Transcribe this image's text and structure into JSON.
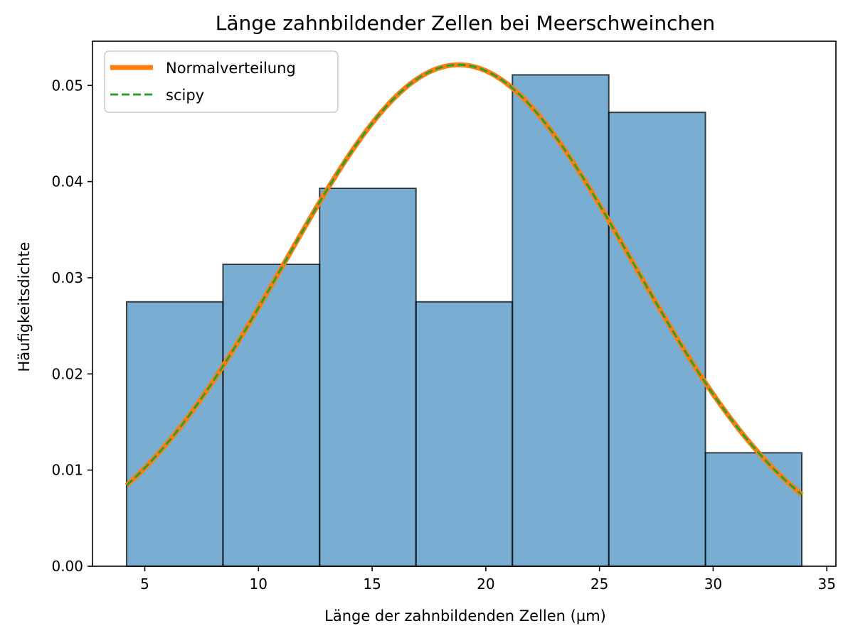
{
  "chart_data": {
    "type": "histogram",
    "title": "Länge zahnbildender Zellen bei Meerschweinchen",
    "xlabel": "Länge der zahnbildenden Zellen (µm)",
    "ylabel": "Häufigkeitsdichte",
    "xlim": [
      2.7,
      35.4
    ],
    "ylim": [
      0,
      0.0546
    ],
    "xticks": [
      5,
      10,
      15,
      20,
      25,
      30,
      35
    ],
    "yticks": [
      0.0,
      0.01,
      0.02,
      0.03,
      0.04,
      0.05
    ],
    "ytick_labels": [
      "0.00",
      "0.01",
      "0.02",
      "0.03",
      "0.04",
      "0.05"
    ],
    "bins": [
      {
        "x0": 4.2,
        "x1": 8.44,
        "density": 0.0275
      },
      {
        "x0": 8.44,
        "x1": 12.69,
        "density": 0.0314
      },
      {
        "x0": 12.69,
        "x1": 16.93,
        "density": 0.0393
      },
      {
        "x0": 16.93,
        "x1": 21.17,
        "density": 0.0275
      },
      {
        "x0": 21.17,
        "x1": 25.41,
        "density": 0.0511
      },
      {
        "x0": 25.41,
        "x1": 29.66,
        "density": 0.0472
      },
      {
        "x0": 29.66,
        "x1": 33.9,
        "density": 0.0118
      }
    ],
    "series": [
      {
        "name": "Normalverteilung",
        "type": "line",
        "mean": 18.81,
        "std": 7.65,
        "x_range": [
          4.2,
          33.9
        ],
        "color": "#ff7f0e",
        "style": "solid"
      },
      {
        "name": "scipy",
        "type": "line",
        "mean": 18.81,
        "std": 7.65,
        "x_range": [
          4.2,
          33.9
        ],
        "color": "#2ca02c",
        "style": "dashed"
      }
    ],
    "bar_color": "#1f77b4",
    "bar_edge_color": "#000000",
    "legend_position": "top-left",
    "grid": false
  }
}
